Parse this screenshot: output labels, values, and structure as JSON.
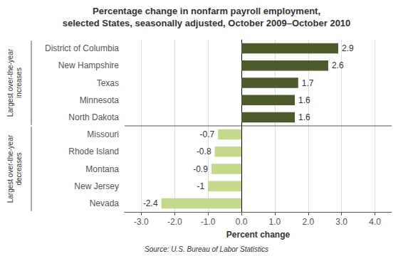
{
  "chart_data": {
    "type": "bar",
    "orientation": "horizontal",
    "title": "Percentage change in nonfarm payroll employment,",
    "subtitle": "selected States, seasonally adjusted, October 2009–October 2010",
    "categories": [
      "District of Columbia",
      "New Hampshire",
      "Texas",
      "Minnesota",
      "North Dakota",
      "Missouri",
      "Rhode Island",
      "Montana",
      "New Jersey",
      "Nevada"
    ],
    "values": [
      2.9,
      2.6,
      1.7,
      1.6,
      1.6,
      -0.7,
      -0.8,
      -0.9,
      -1.0,
      -2.4
    ],
    "colors": [
      "#4d5a2a",
      "#4d5a2a",
      "#4d5a2a",
      "#4d5a2a",
      "#4d5a2a",
      "#c5d98a",
      "#c5d98a",
      "#c5d98a",
      "#c5d98a",
      "#c5d98a"
    ],
    "xlabel": "Percent change",
    "xlim": [
      -3.5,
      4.5
    ],
    "xticks": [
      {
        "value": -3.0,
        "label": "-3.0"
      },
      {
        "value": -2.0,
        "label": "-2.0"
      },
      {
        "value": -1.0,
        "label": "-1.0"
      },
      {
        "value": 0.0,
        "label": "0.0"
      },
      {
        "value": 1.0,
        "label": "1.0"
      },
      {
        "value": 2.0,
        "label": "2.0"
      },
      {
        "value": 3.0,
        "label": "3.0"
      },
      {
        "value": 4.0,
        "label": "4.0"
      }
    ],
    "grid": true,
    "data_labels": true,
    "annotations": [
      "Largest over-the-year\nincreases",
      "Largest over-the-year\ndecreases",
      "Source: U.S. Bureau of Labor Statistics"
    ]
  }
}
